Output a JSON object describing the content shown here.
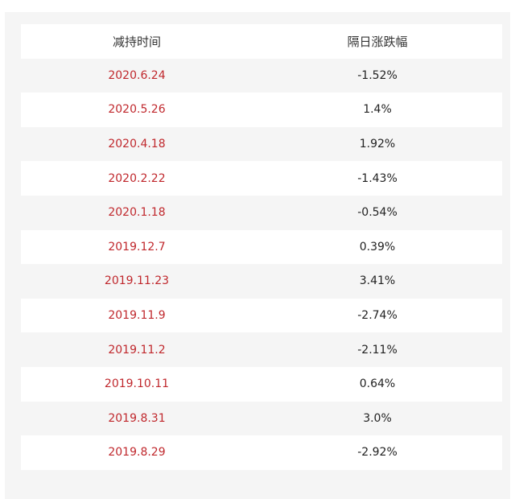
{
  "table": {
    "headers": [
      "减持时间",
      "隔日涨跌幅"
    ],
    "rows": [
      {
        "date": "2020.6.24",
        "change": "-1.52%"
      },
      {
        "date": "2020.5.26",
        "change": "1.4%"
      },
      {
        "date": "2020.4.18",
        "change": "1.92%"
      },
      {
        "date": "2020.2.22",
        "change": "-1.43%"
      },
      {
        "date": "2020.1.18",
        "change": "-0.54%"
      },
      {
        "date": "2019.12.7",
        "change": "0.39%"
      },
      {
        "date": "2019.11.23",
        "change": "3.41%"
      },
      {
        "date": "2019.11.9",
        "change": "-2.74%"
      },
      {
        "date": "2019.11.2",
        "change": "-2.11%"
      },
      {
        "date": "2019.10.11",
        "change": "0.64%"
      },
      {
        "date": "2019.8.31",
        "change": "3.0%"
      },
      {
        "date": "2019.8.29",
        "change": "-2.92%"
      }
    ]
  },
  "colors": {
    "date_text": "#c0282d",
    "change_text": "#222222",
    "panel_background": "#f5f5f5",
    "row_background": "#ffffff"
  }
}
